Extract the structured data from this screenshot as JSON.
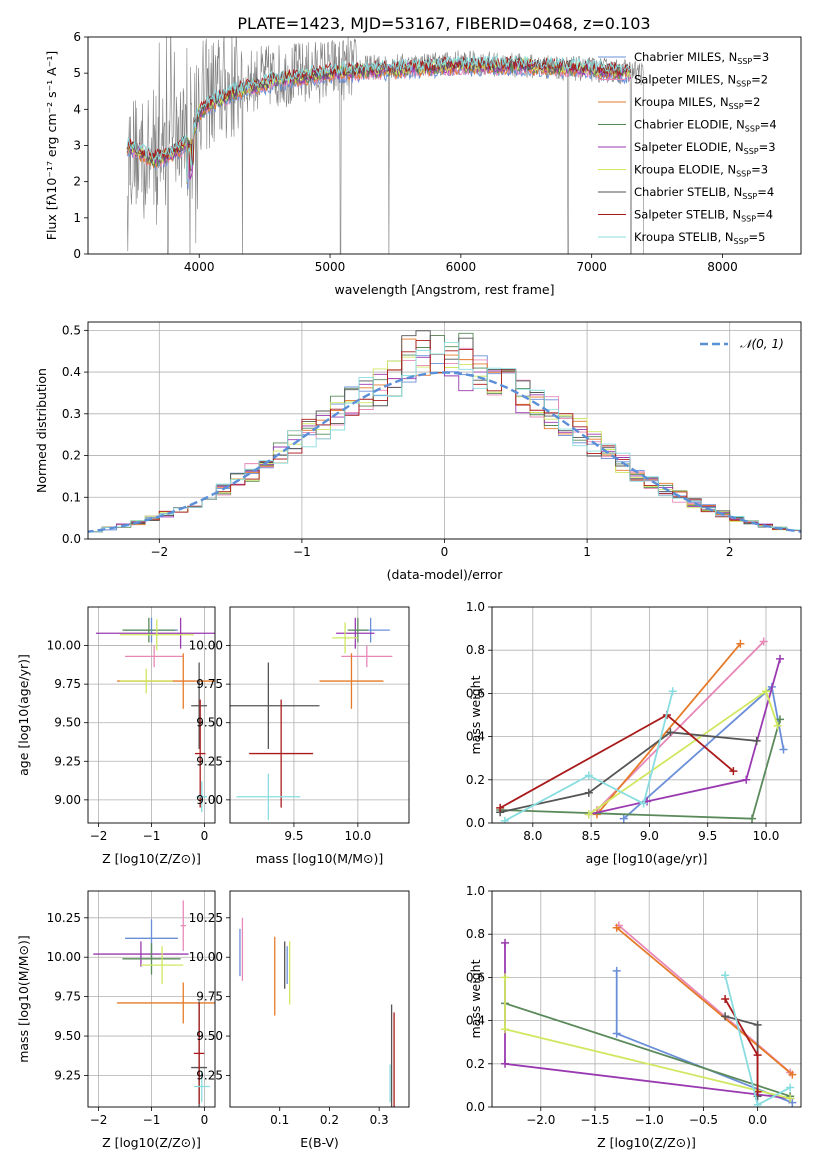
{
  "title": "PLATE=1423, MJD=53167, FIBERID=0468, z=0.103",
  "colors": {
    "Chabrier MILES": "#6a8fd8",
    "Salpeter MILES": "#e888b8",
    "Kroupa MILES": "#e67a28",
    "Chabrier ELODIE": "#5a8a5a",
    "Salpeter ELODIE": "#9a3ab0",
    "Kroupa ELODIE": "#cfe860",
    "Chabrier STELIB": "#555555",
    "Salpeter STELIB": "#aa1a1a",
    "Kroupa STELIB": "#88dde0",
    "data": "#808080",
    "gaussian": "#5b8fd8"
  },
  "chart_data": [
    {
      "type": "line",
      "xlabel": "wavelength [Angstrom, rest frame]",
      "ylabel": "Flux [f_λ 10^-17 erg cm^-2 s^-1 A^-1]",
      "xlim": [
        3150,
        8600
      ],
      "ylim": [
        0,
        6
      ],
      "xticks": [
        "4000",
        "5000",
        "6000",
        "7000",
        "8000"
      ],
      "yticks": [
        "0",
        "1",
        "2",
        "3",
        "4",
        "5",
        "6"
      ],
      "grid": false,
      "legend_position": "top-right",
      "legend": [
        {
          "label": "Chabrier MILES, N",
          "sub": "SSP",
          "suffix": "=3",
          "color": "#6a8fd8"
        },
        {
          "label": "Salpeter MILES, N",
          "sub": "SSP",
          "suffix": "=2",
          "color": "#e888b8"
        },
        {
          "label": "Kroupa MILES, N",
          "sub": "SSP",
          "suffix": "=2",
          "color": "#e67a28"
        },
        {
          "label": "Chabrier ELODIE, N",
          "sub": "SSP",
          "suffix": "=4",
          "color": "#5a8a5a"
        },
        {
          "label": "Salpeter ELODIE, N",
          "sub": "SSP",
          "suffix": "=3",
          "color": "#9a3ab0"
        },
        {
          "label": "Kroupa ELODIE, N",
          "sub": "SSP",
          "suffix": "=3",
          "color": "#cfe860"
        },
        {
          "label": "Chabrier STELIB, N",
          "sub": "SSP",
          "suffix": "=4",
          "color": "#555555"
        },
        {
          "label": "Salpeter STELIB, N",
          "sub": "SSP",
          "suffix": "=4",
          "color": "#aa1a1a"
        },
        {
          "label": "Kroupa STELIB, N",
          "sub": "SSP",
          "suffix": "=5",
          "color": "#88dde0"
        }
      ],
      "data_continuum": {
        "x": [
          3450,
          3600,
          3700,
          3800,
          3900,
          4000,
          4200,
          4500,
          4800,
          5000,
          5500,
          6000,
          6500,
          7000,
          7400
        ],
        "y": [
          2.9,
          2.7,
          2.9,
          3.0,
          3.4,
          4.3,
          4.6,
          4.9,
          5.0,
          5.1,
          5.2,
          5.3,
          5.2,
          5.1,
          5.0
        ]
      },
      "model_continuum": {
        "x": [
          3450,
          3550,
          3650,
          3750,
          3850,
          3950,
          4000,
          4100,
          4300,
          4600,
          5000,
          5500,
          6000,
          6500,
          7000,
          7300
        ],
        "y": [
          3.0,
          2.8,
          2.6,
          2.7,
          2.9,
          3.3,
          3.9,
          4.2,
          4.5,
          4.8,
          5.0,
          5.1,
          5.2,
          5.2,
          5.1,
          5.0
        ]
      },
      "deep_dips": [
        3760,
        3930,
        4330,
        5080,
        5450,
        6820,
        7300,
        7400
      ]
    },
    {
      "type": "bar",
      "xlabel": "(data-model)/error",
      "ylabel": "Normed distribution",
      "xlim": [
        -2.5,
        2.5
      ],
      "ylim": [
        0,
        0.52
      ],
      "xticks": [
        "−2",
        "−1",
        "0",
        "1",
        "2"
      ],
      "yticks": [
        "0.0",
        "0.1",
        "0.2",
        "0.3",
        "0.4",
        "0.5"
      ],
      "grid": true,
      "legend": [
        {
          "label": "𝒩(0, 1)",
          "color": "#5b8fd8"
        }
      ],
      "bin_width": 0.1,
      "hist_x_start": -2.5,
      "gaussian": {
        "mu": 0,
        "sigma": 1
      }
    },
    {
      "type": "scatter",
      "xlabel": "Z [log10(Z/Z⊙)]",
      "ylabel": "age  [log10(age/yr)]",
      "xlim": [
        -2.2,
        0.2
      ],
      "ylim": [
        8.85,
        10.25
      ],
      "xticks": [
        -2,
        -1,
        0
      ],
      "yticks": [
        9.0,
        9.25,
        9.5,
        9.75,
        10.0
      ],
      "grid": true,
      "points": [
        {
          "x": -1.0,
          "y": 10.1,
          "xerr": 0.5,
          "yerr": 0.08,
          "color": "#6a8fd8"
        },
        {
          "x": -0.95,
          "y": 9.93,
          "xerr": 0.55,
          "yerr": 0.07,
          "color": "#e888b8"
        },
        {
          "x": -0.45,
          "y": 10.08,
          "xerr": 1.6,
          "yerr": 0.1,
          "color": "#9a3ab0"
        },
        {
          "x": -1.05,
          "y": 10.1,
          "xerr": 0.5,
          "yerr": 0.08,
          "color": "#5a8a5a"
        },
        {
          "x": -0.9,
          "y": 10.07,
          "xerr": 0.7,
          "yerr": 0.1,
          "color": "#cfe860"
        },
        {
          "x": -0.4,
          "y": 9.77,
          "xerr": 1.25,
          "yerr": 0.18,
          "color": "#e67a28"
        },
        {
          "x": -1.1,
          "y": 9.77,
          "xerr": 0.5,
          "yerr": 0.08,
          "color": "#cfe860"
        },
        {
          "x": -0.1,
          "y": 9.61,
          "xerr": 0.15,
          "yerr": 0.28,
          "color": "#555555"
        },
        {
          "x": -0.08,
          "y": 9.3,
          "xerr": 0.1,
          "yerr": 0.35,
          "color": "#aa1a1a"
        },
        {
          "x": -0.05,
          "y": 9.02,
          "xerr": 0.1,
          "yerr": 0.1,
          "color": "#88dde0"
        }
      ]
    },
    {
      "type": "scatter",
      "xlabel": "mass [log10(M/M⊙)]",
      "ylabel": "",
      "xlim": [
        9.0,
        10.4
      ],
      "ylim": [
        8.85,
        10.25
      ],
      "xticks": [
        9.5,
        10.0
      ],
      "yticks": [
        9.0,
        9.25,
        9.5,
        9.75,
        10.0
      ],
      "grid": true,
      "points": [
        {
          "x": 10.1,
          "y": 10.1,
          "xerr": 0.15,
          "yerr": 0.08,
          "color": "#6a8fd8"
        },
        {
          "x": 10.07,
          "y": 9.93,
          "xerr": 0.2,
          "yerr": 0.07,
          "color": "#e888b8"
        },
        {
          "x": 9.98,
          "y": 10.08,
          "xerr": 0.15,
          "yerr": 0.1,
          "color": "#9a3ab0"
        },
        {
          "x": 10.0,
          "y": 10.1,
          "xerr": 0.08,
          "yerr": 0.08,
          "color": "#5a8a5a"
        },
        {
          "x": 9.9,
          "y": 10.05,
          "xerr": 0.1,
          "yerr": 0.1,
          "color": "#cfe860"
        },
        {
          "x": 9.95,
          "y": 9.77,
          "xerr": 0.25,
          "yerr": 0.18,
          "color": "#e67a28"
        },
        {
          "x": 9.3,
          "y": 9.61,
          "xerr": 0.4,
          "yerr": 0.28,
          "color": "#555555"
        },
        {
          "x": 9.4,
          "y": 9.3,
          "xerr": 0.25,
          "yerr": 0.35,
          "color": "#aa1a1a"
        },
        {
          "x": 9.3,
          "y": 9.02,
          "xerr": 0.25,
          "yerr": 0.15,
          "color": "#88dde0"
        }
      ]
    },
    {
      "type": "line",
      "xlabel": "age  [log10(age/yr)]",
      "ylabel": "mass weight",
      "xlim": [
        7.65,
        10.3
      ],
      "ylim": [
        0,
        1
      ],
      "xticks": [
        8.0,
        8.5,
        9.0,
        9.5,
        10.0
      ],
      "yticks": [
        0.0,
        0.2,
        0.4,
        0.6,
        0.8,
        1.0
      ],
      "grid": true,
      "series": [
        {
          "color": "#6a8fd8",
          "points": [
            [
              8.78,
              0.02
            ],
            [
              10.05,
              0.63
            ],
            [
              10.15,
              0.34
            ]
          ]
        },
        {
          "color": "#e888b8",
          "points": [
            [
              8.55,
              0.06
            ],
            [
              9.98,
              0.84
            ]
          ]
        },
        {
          "color": "#e67a28",
          "points": [
            [
              8.55,
              0.04
            ],
            [
              9.78,
              0.83
            ]
          ]
        },
        {
          "color": "#5a8a5a",
          "points": [
            [
              7.72,
              0.06
            ],
            [
              9.88,
              0.02
            ],
            [
              10.12,
              0.48
            ]
          ]
        },
        {
          "color": "#9a3ab0",
          "points": [
            [
              8.48,
              0.04
            ],
            [
              8.98,
              0.1
            ],
            [
              9.83,
              0.2
            ],
            [
              10.12,
              0.76
            ]
          ]
        },
        {
          "color": "#cfe860",
          "points": [
            [
              8.48,
              0.04
            ],
            [
              10.0,
              0.61
            ],
            [
              10.1,
              0.45
            ]
          ]
        },
        {
          "color": "#555555",
          "points": [
            [
              7.72,
              0.05
            ],
            [
              8.48,
              0.14
            ],
            [
              9.18,
              0.42
            ],
            [
              9.92,
              0.38
            ]
          ]
        },
        {
          "color": "#aa1a1a",
          "points": [
            [
              7.72,
              0.07
            ],
            [
              9.15,
              0.5
            ],
            [
              9.72,
              0.24
            ]
          ]
        },
        {
          "color": "#88dde0",
          "points": [
            [
              7.76,
              0.01
            ],
            [
              8.48,
              0.22
            ],
            [
              8.95,
              0.09
            ],
            [
              9.2,
              0.61
            ]
          ]
        }
      ]
    },
    {
      "type": "scatter",
      "xlabel": "Z [log10(Z/Z⊙)]",
      "ylabel": "mass [log10(M/M⊙)]",
      "xlim": [
        -2.2,
        0.2
      ],
      "ylim": [
        9.05,
        10.42
      ],
      "xticks": [
        -2,
        -1,
        0
      ],
      "yticks": [
        9.25,
        9.5,
        9.75,
        10.0,
        10.25
      ],
      "grid": true,
      "points": [
        {
          "x": -1.0,
          "y": 10.12,
          "xerr": 0.5,
          "yerr": 0.12,
          "color": "#6a8fd8"
        },
        {
          "x": -0.4,
          "y": 10.2,
          "xerr": 0.05,
          "yerr": 0.16,
          "color": "#e888b8"
        },
        {
          "x": -1.2,
          "y": 10.02,
          "xerr": 0.9,
          "yerr": 0.08,
          "color": "#9a3ab0"
        },
        {
          "x": -1.0,
          "y": 9.99,
          "xerr": 0.55,
          "yerr": 0.1,
          "color": "#5a8a5a"
        },
        {
          "x": -0.8,
          "y": 9.95,
          "xerr": 0.4,
          "yerr": 0.12,
          "color": "#cfe860"
        },
        {
          "x": -0.4,
          "y": 9.71,
          "xerr": 1.25,
          "yerr": 0.13,
          "color": "#e67a28"
        },
        {
          "x": -0.1,
          "y": 9.3,
          "xerr": 0.15,
          "yerr": 0.42,
          "color": "#555555"
        },
        {
          "x": -0.1,
          "y": 9.39,
          "xerr": 0.1,
          "yerr": 0.32,
          "color": "#aa1a1a"
        },
        {
          "x": -0.05,
          "y": 9.18,
          "xerr": 0.15,
          "yerr": 0.1,
          "color": "#88dde0"
        }
      ]
    },
    {
      "type": "scatter",
      "xlabel": "E(B-V)",
      "ylabel": "",
      "xlim": [
        0.0,
        0.36
      ],
      "ylim": [
        9.05,
        10.42
      ],
      "xticks": [
        0.1,
        0.2,
        0.3
      ],
      "yticks": [
        9.25,
        9.5,
        9.75,
        10.0,
        10.25
      ],
      "grid": false,
      "points": [
        {
          "x": 0.025,
          "y": 10.05,
          "yerr": 0.2,
          "color": "#e888b8"
        },
        {
          "x": 0.02,
          "y": 10.03,
          "yerr": 0.15,
          "color": "#6a8fd8"
        },
        {
          "x": 0.09,
          "y": 9.88,
          "yerr": 0.25,
          "color": "#e67a28"
        },
        {
          "x": 0.11,
          "y": 9.95,
          "yerr": 0.15,
          "color": "#555555"
        },
        {
          "x": 0.115,
          "y": 9.95,
          "yerr": 0.12,
          "color": "#6a8fd8"
        },
        {
          "x": 0.12,
          "y": 9.9,
          "yerr": 0.2,
          "color": "#cfe860"
        },
        {
          "x": 0.325,
          "y": 9.3,
          "yerr": 0.4,
          "color": "#555555"
        },
        {
          "x": 0.33,
          "y": 9.35,
          "yerr": 0.3,
          "color": "#aa1a1a"
        },
        {
          "x": 0.322,
          "y": 9.2,
          "yerr": 0.12,
          "color": "#88dde0"
        }
      ]
    },
    {
      "type": "line",
      "xlabel": "Z [log10(Z/Z⊙)]",
      "ylabel": "mass weight",
      "xlim": [
        -2.45,
        0.4
      ],
      "ylim": [
        0,
        1
      ],
      "xticks": [
        -2.0,
        -1.5,
        -1.0,
        -0.5,
        0.0
      ],
      "yticks": [
        0.0,
        0.2,
        0.4,
        0.6,
        0.8,
        1.0
      ],
      "grid": true,
      "series": [
        {
          "color": "#6a8fd8",
          "points": [
            [
              -1.3,
              0.63
            ],
            [
              -1.3,
              0.34
            ],
            [
              0.32,
              0.02
            ]
          ]
        },
        {
          "color": "#e888b8",
          "points": [
            [
              -1.28,
              0.84
            ],
            [
              0.3,
              0.16
            ]
          ]
        },
        {
          "color": "#e67a28",
          "points": [
            [
              -1.3,
              0.83
            ],
            [
              0.32,
              0.15
            ]
          ]
        },
        {
          "color": "#5a8a5a",
          "points": [
            [
              -2.33,
              0.48
            ],
            [
              0.3,
              0.05
            ]
          ]
        },
        {
          "color": "#9a3ab0",
          "points": [
            [
              -2.33,
              0.76
            ],
            [
              -2.33,
              0.2
            ],
            [
              0.3,
              0.04
            ]
          ]
        },
        {
          "color": "#cfe860",
          "points": [
            [
              -2.33,
              0.6
            ],
            [
              -2.33,
              0.36
            ],
            [
              0.3,
              0.04
            ]
          ]
        },
        {
          "color": "#555555",
          "points": [
            [
              -0.3,
              0.42
            ],
            [
              0.0,
              0.38
            ],
            [
              0.0,
              0.05
            ]
          ]
        },
        {
          "color": "#aa1a1a",
          "points": [
            [
              -0.3,
              0.5
            ],
            [
              0.0,
              0.24
            ],
            [
              0.0,
              0.07
            ]
          ]
        },
        {
          "color": "#88dde0",
          "points": [
            [
              -0.3,
              0.61
            ],
            [
              0.0,
              0.01
            ],
            [
              0.3,
              0.09
            ]
          ]
        }
      ]
    }
  ]
}
